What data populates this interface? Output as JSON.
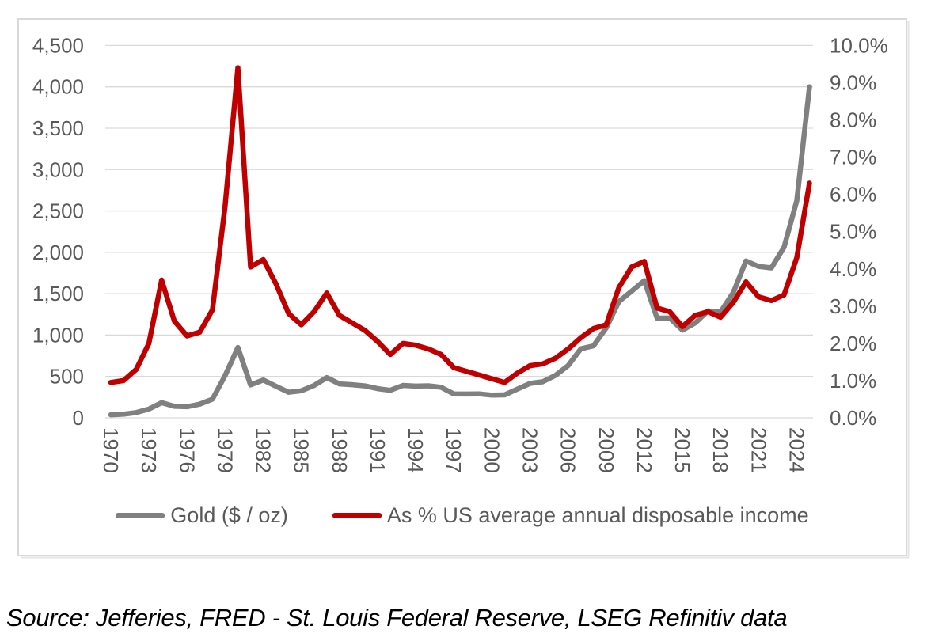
{
  "chart_data": {
    "type": "line",
    "title": "",
    "x_years": [
      1970,
      1971,
      1972,
      1973,
      1974,
      1975,
      1976,
      1977,
      1978,
      1979,
      1980,
      1981,
      1982,
      1983,
      1984,
      1985,
      1986,
      1987,
      1988,
      1989,
      1990,
      1991,
      1992,
      1993,
      1994,
      1995,
      1996,
      1997,
      1998,
      1999,
      2000,
      2001,
      2002,
      2003,
      2004,
      2005,
      2006,
      2007,
      2008,
      2009,
      2010,
      2011,
      2012,
      2013,
      2014,
      2015,
      2016,
      2017,
      2018,
      2019,
      2020,
      2021,
      2022,
      2023,
      2024,
      2025
    ],
    "series": [
      {
        "name": "Gold ($ / oz)",
        "axis": "left",
        "color": "#808080",
        "values": [
          37,
          44,
          64,
          106,
          184,
          140,
          135,
          165,
          226,
          512,
          850,
          398,
          457,
          382,
          309,
          327,
          391,
          486,
          410,
          401,
          386,
          353,
          333,
          392,
          383,
          387,
          369,
          290,
          288,
          290,
          274,
          277,
          347,
          416,
          436,
          513,
          632,
          834,
          870,
          1088,
          1406,
          1531,
          1658,
          1205,
          1206,
          1060,
          1146,
          1291,
          1279,
          1515,
          1895,
          1829,
          1812,
          2062,
          2625,
          4000
        ]
      },
      {
        "name": "As % US average annual disposable income",
        "axis": "right",
        "color": "#C00000",
        "values": [
          0.95,
          1.0,
          1.3,
          2.0,
          3.7,
          2.6,
          2.2,
          2.3,
          2.9,
          5.7,
          9.4,
          4.05,
          4.25,
          3.6,
          2.8,
          2.5,
          2.85,
          3.35,
          2.75,
          2.55,
          2.35,
          2.05,
          1.7,
          2.0,
          1.95,
          1.85,
          1.7,
          1.35,
          1.25,
          1.15,
          1.05,
          0.95,
          1.2,
          1.4,
          1.45,
          1.6,
          1.85,
          2.15,
          2.4,
          2.5,
          3.5,
          4.05,
          4.2,
          2.95,
          2.85,
          2.45,
          2.75,
          2.85,
          2.7,
          3.1,
          3.65,
          3.25,
          3.15,
          3.3,
          4.3,
          6.3
        ]
      }
    ],
    "left_axis": {
      "min": 0,
      "max": 4500,
      "step": 500,
      "tick_labels": [
        "0",
        "500",
        "1,000",
        "1,500",
        "2,000",
        "2,500",
        "3,000",
        "3,500",
        "4,000",
        "4,500"
      ]
    },
    "right_axis": {
      "min": 0,
      "max": 10,
      "step": 1,
      "tick_labels": [
        "0.0%",
        "1.0%",
        "2.0%",
        "3.0%",
        "4.0%",
        "5.0%",
        "6.0%",
        "7.0%",
        "8.0%",
        "9.0%",
        "10.0%"
      ]
    },
    "x_tick_labels": [
      "1970",
      "1973",
      "1976",
      "1979",
      "1982",
      "1985",
      "1988",
      "1991",
      "1994",
      "1997",
      "2000",
      "2003",
      "2006",
      "2009",
      "2012",
      "2015",
      "2018",
      "2021",
      "2024"
    ],
    "grid": true,
    "legend_position": "bottom"
  },
  "legend": {
    "items": [
      {
        "label": "Gold ($ / oz)",
        "color": "#808080"
      },
      {
        "label": "As % US average annual disposable income",
        "color": "#C00000"
      }
    ]
  },
  "source_note": "Source: Jefferies, FRED - St. Louis Federal Reserve, LSEG Refinitiv data",
  "colors": {
    "axis_text": "#595959",
    "gridline": "#d9d9d9",
    "frame_border": "#d9d9d9",
    "gold_line": "#808080",
    "ratio_line": "#C00000",
    "source_text": "#000000"
  }
}
